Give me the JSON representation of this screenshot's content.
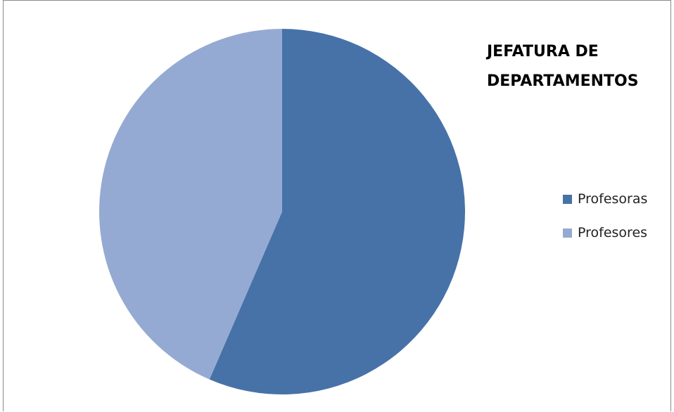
{
  "chart_data": {
    "type": "pie",
    "title": "JEFATURA DE DEPARTAMENTOS",
    "categories": [
      "Profesoras",
      "Profesores"
    ],
    "values": [
      56.5,
      43.5
    ],
    "colors": [
      "#4672a8",
      "#95aad2"
    ],
    "legend_position": "right"
  }
}
